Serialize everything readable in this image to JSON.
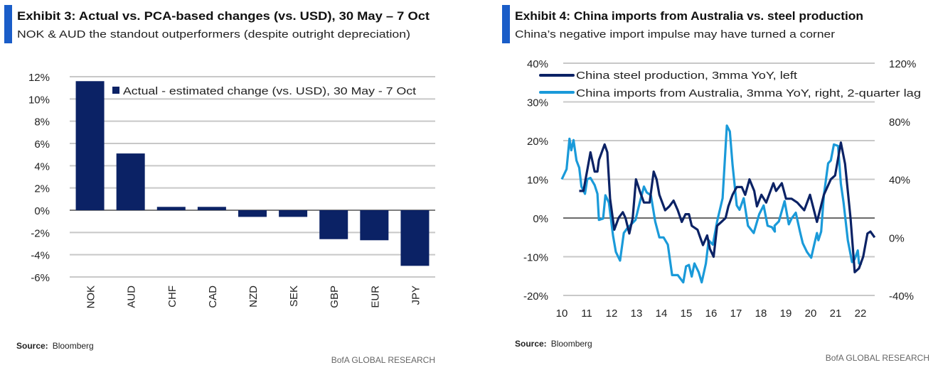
{
  "colors": {
    "accent_bar": "#1a5dc8",
    "navy": "#0b2265",
    "light_blue": "#1a9ad9",
    "grid": "#c8c8c8"
  },
  "chart_data": [
    {
      "type": "bar",
      "exhibit_title": "Exhibit 3: Actual vs. PCA-based changes (vs. USD), 30 May – 7 Oct",
      "subtitle": "NOK & AUD the standout outperformers (despite outright depreciation)",
      "legend": "Actual - estimated change (vs. USD), 30 May - 7 Oct",
      "legend_position": "top-right",
      "categories": [
        "NOK",
        "AUD",
        "CHF",
        "CAD",
        "NZD",
        "SEK",
        "GBP",
        "EUR",
        "JPY"
      ],
      "values": [
        11.6,
        5.1,
        0.3,
        0.3,
        -0.6,
        -0.6,
        -2.6,
        -2.7,
        -5.0
      ],
      "ylim": [
        -6,
        12
      ],
      "yticks": [
        12,
        10,
        8,
        6,
        4,
        2,
        0,
        -2,
        -4,
        -6
      ],
      "ytick_labels": [
        "12%",
        "10%",
        "8%",
        "6%",
        "4%",
        "2%",
        "0%",
        "-2%",
        "-4%",
        "-6%"
      ],
      "grid": true,
      "source_label": "Source:",
      "source": "Bloomberg",
      "brand": "BofA GLOBAL RESEARCH"
    },
    {
      "type": "line",
      "exhibit_title": "Exhibit 4: China imports from Australia vs. steel production",
      "subtitle": "China’s negative import impulse may have turned a corner",
      "ylim_left": [
        -20,
        40
      ],
      "ylim_right": [
        -40,
        120
      ],
      "yticks_left_labels": [
        "40%",
        "30%",
        "20%",
        "10%",
        "0%",
        "-10%",
        "-20%"
      ],
      "yticks_left": [
        40,
        30,
        20,
        10,
        0,
        -10,
        -20
      ],
      "yticks_right_labels": [
        "120%",
        "80%",
        "40%",
        "0%",
        "-40%"
      ],
      "yticks_right": [
        120,
        80,
        40,
        0,
        -40
      ],
      "xtick_labels": [
        "10",
        "11",
        "12",
        "13",
        "14",
        "15",
        "16",
        "17",
        "18",
        "19",
        "20",
        "21",
        "22"
      ],
      "xticks": [
        2010,
        2011,
        2012,
        2013,
        2014,
        2015,
        2016,
        2017,
        2018,
        2019,
        2020,
        2021,
        2022
      ],
      "xlim": [
        2010,
        2022.6
      ],
      "grid": true,
      "legend_position": "top-left",
      "series": [
        {
          "name": "China steel production, 3mma YoY, left",
          "axis": "left",
          "x": [
            2010.7,
            2010.87,
            2011.04,
            2011.15,
            2011.32,
            2011.43,
            2011.49,
            2011.72,
            2011.83,
            2011.94,
            2012.11,
            2012.28,
            2012.45,
            2012.56,
            2012.71,
            2012.85,
            2012.98,
            2013.13,
            2013.3,
            2013.53,
            2013.69,
            2013.81,
            2013.92,
            2014.15,
            2014.32,
            2014.49,
            2014.66,
            2014.82,
            2014.97,
            2015.11,
            2015.22,
            2015.45,
            2015.56,
            2015.67,
            2015.84,
            2015.95,
            2016.1,
            2016.24,
            2016.41,
            2016.58,
            2016.69,
            2016.86,
            2017.03,
            2017.23,
            2017.37,
            2017.54,
            2017.73,
            2017.84,
            2018.02,
            2018.21,
            2018.5,
            2018.61,
            2018.84,
            2019.01,
            2019.23,
            2019.46,
            2019.74,
            2019.97,
            2020.25,
            2020.53,
            2020.81,
            2020.98,
            2021.21,
            2021.38,
            2021.6,
            2021.77,
            2021.94,
            2022.11,
            2022.28,
            2022.4,
            2022.57
          ],
          "y": [
            7,
            7,
            13,
            17,
            12,
            12,
            15,
            19,
            17,
            5,
            -3,
            0,
            1.5,
            0,
            -4,
            0,
            10,
            7,
            4,
            4,
            12,
            10,
            6,
            2,
            3,
            4.5,
            2,
            -1,
            1,
            1,
            -2,
            -3,
            -5,
            -7,
            -4.5,
            -8,
            -10,
            -2,
            -1,
            0,
            3,
            6,
            8,
            8,
            6,
            10,
            7,
            3,
            6,
            4,
            9,
            7,
            9,
            5,
            5,
            4,
            2,
            6,
            -1,
            6,
            10,
            11,
            19.5,
            14,
            0,
            -14,
            -13,
            -10,
            -4,
            -3.5,
            -5
          ]
        },
        {
          "name": "China imports from Australia, 3mma YoY, right, 2-quarter lag",
          "axis": "right",
          "x": [
            2010.0,
            2010.19,
            2010.31,
            2010.38,
            2010.47,
            2010.59,
            2010.7,
            2010.79,
            2010.93,
            2011.02,
            2011.15,
            2011.32,
            2011.43,
            2011.49,
            2011.66,
            2011.75,
            2011.89,
            2012.06,
            2012.17,
            2012.34,
            2012.49,
            2012.62,
            2012.79,
            2012.96,
            2013.13,
            2013.3,
            2013.41,
            2013.58,
            2013.75,
            2013.92,
            2014.09,
            2014.26,
            2014.43,
            2014.66,
            2014.88,
            2014.99,
            2015.11,
            2015.22,
            2015.33,
            2015.5,
            2015.62,
            2015.79,
            2015.9,
            2016.07,
            2016.24,
            2016.46,
            2016.63,
            2016.75,
            2016.86,
            2017.03,
            2017.14,
            2017.31,
            2017.48,
            2017.71,
            2017.93,
            2018.11,
            2018.27,
            2018.44,
            2018.56,
            2018.55,
            2018.72,
            2018.95,
            2019.12,
            2019.23,
            2019.4,
            2019.57,
            2019.68,
            2019.85,
            2020.02,
            2020.14,
            2020.25,
            2020.31,
            2020.42,
            2020.53,
            2020.7,
            2020.81,
            2020.93,
            2021.1,
            2021.21,
            2021.32,
            2021.49,
            2021.66,
            2021.77,
            2021.89,
            2021.94,
            2022.06
          ],
          "y": [
            40,
            47,
            68,
            60,
            67,
            53,
            48,
            35,
            30,
            40,
            41,
            36,
            30,
            12,
            13,
            29,
            24,
            1,
            -10,
            -16,
            3,
            6,
            9,
            12,
            24,
            35,
            31,
            29,
            11,
            0,
            0,
            -5,
            -26,
            -26,
            -31,
            -20,
            -19,
            -27,
            -18,
            -24,
            -31,
            -18,
            -2,
            -5,
            11,
            27,
            77,
            73,
            50,
            22,
            19,
            27,
            8,
            3,
            16,
            22,
            8,
            7,
            4,
            8,
            11,
            25,
            9,
            13,
            17,
            4,
            -4,
            -10,
            -14,
            -5,
            3,
            -2,
            4,
            29,
            51,
            53,
            64,
            63,
            37,
            24,
            -2,
            -17,
            -15,
            -9,
            -18,
            -18
          ]
        }
      ],
      "source_label": "Source:",
      "source": "Bloomberg",
      "brand": "BofA GLOBAL RESEARCH"
    }
  ]
}
